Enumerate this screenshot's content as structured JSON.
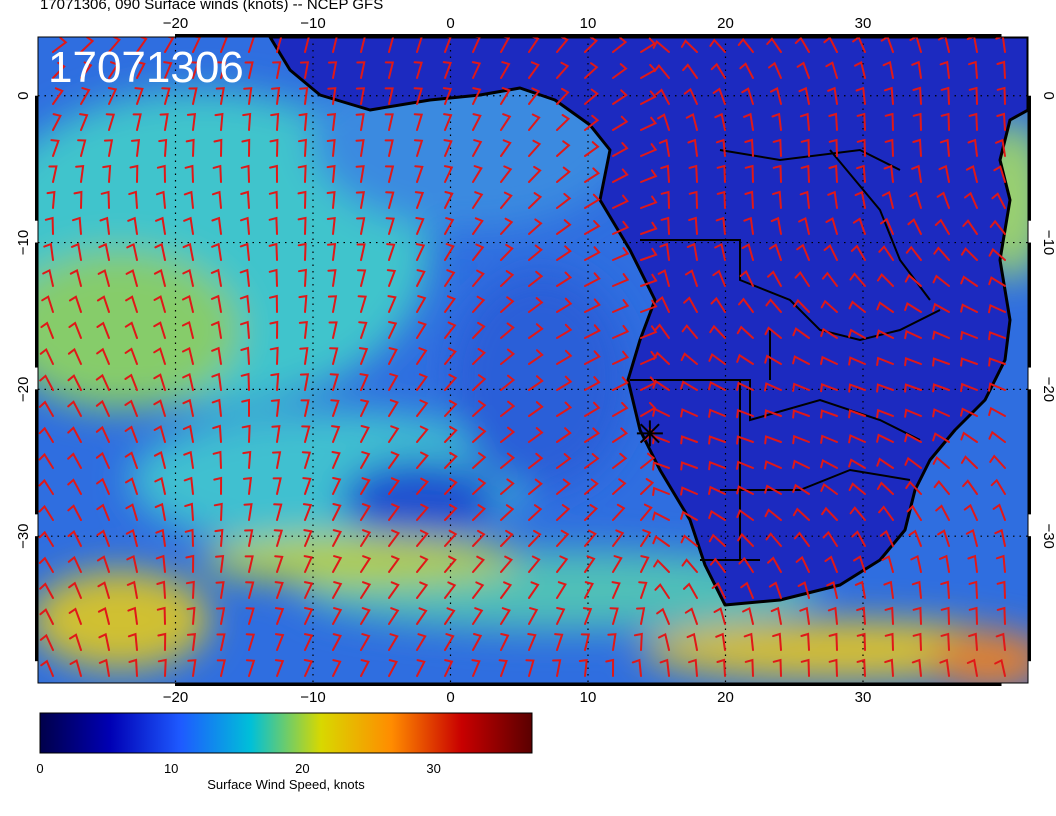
{
  "title": "17071306, 090 Surface winds (knots) -- NCEP GFS",
  "stamp": "17071306",
  "map": {
    "lon_min": -30,
    "lon_max": 42,
    "lat_min": -40,
    "lat_max": 4,
    "lon_ticks": [
      -20,
      -10,
      0,
      10,
      20,
      30
    ],
    "lat_ticks": [
      0,
      -10,
      -20,
      -30
    ],
    "marker": {
      "lon": 14.5,
      "lat": -23
    }
  },
  "colorbar": {
    "label": "Surface Wind Speed, knots",
    "min": 0,
    "max": 37.5,
    "ticks": [
      0,
      10,
      20,
      30
    ],
    "colors": [
      "#00004a",
      "#0000b4",
      "#1e5aff",
      "#00c0d8",
      "#d8d800",
      "#ff8c00",
      "#c80000",
      "#5a0000"
    ]
  },
  "colors": {
    "barb": "#e01818",
    "land": "#1a26b8",
    "coast": "#000000",
    "ocean_calm": "#2a55d8",
    "ocean_mid": "#35b6cf",
    "ocean_strong": "#b5c73a"
  }
}
